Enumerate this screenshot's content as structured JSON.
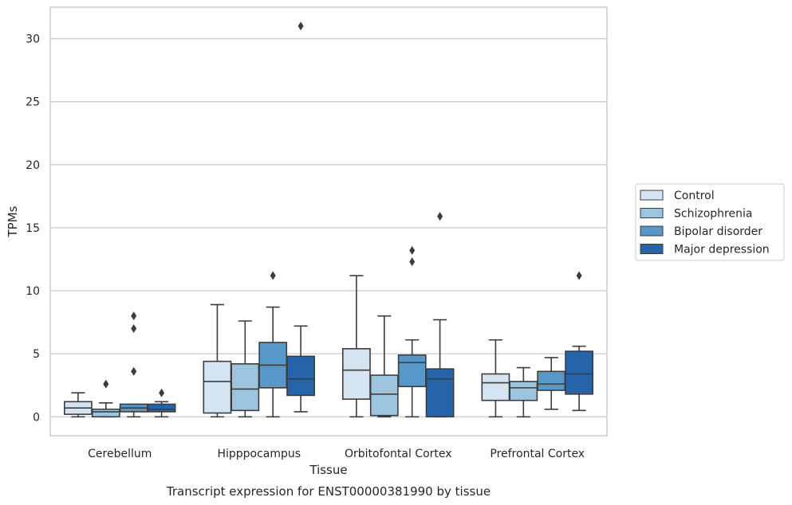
{
  "chart_data": {
    "type": "box",
    "caption": "Transcript expression for ENST00000381990 by tissue",
    "xlabel": "Tissue",
    "ylabel": "TPMs",
    "ylim": [
      -1.5,
      32.5
    ],
    "yticks": [
      0,
      5,
      10,
      15,
      20,
      25,
      30
    ],
    "grid": true,
    "legend_position": "right",
    "categories": [
      "Cerebellum",
      "Hipppocampus",
      "Orbitofontal Cortex",
      "Prefrontal Cortex"
    ],
    "series": [
      {
        "name": "Control",
        "color": "#d4e4f2",
        "boxes": [
          {
            "whislo": 0.0,
            "q1": 0.2,
            "med": 0.7,
            "q3": 1.2,
            "whishi": 1.9,
            "fliers": []
          },
          {
            "whislo": 0.0,
            "q1": 0.3,
            "med": 2.8,
            "q3": 4.4,
            "whishi": 8.9,
            "fliers": []
          },
          {
            "whislo": 0.0,
            "q1": 1.4,
            "med": 3.7,
            "q3": 5.4,
            "whishi": 11.2,
            "fliers": []
          },
          {
            "whislo": 0.0,
            "q1": 1.3,
            "med": 2.7,
            "q3": 3.4,
            "whishi": 6.1,
            "fliers": []
          }
        ]
      },
      {
        "name": "Schizophrenia",
        "color": "#9cc4df",
        "boxes": [
          {
            "whislo": 0.0,
            "q1": 0.0,
            "med": 0.4,
            "q3": 0.6,
            "whishi": 1.1,
            "fliers": [
              2.6
            ]
          },
          {
            "whislo": 0.0,
            "q1": 0.5,
            "med": 2.2,
            "q3": 4.2,
            "whishi": 7.6,
            "fliers": []
          },
          {
            "whislo": 0.0,
            "q1": 0.1,
            "med": 1.8,
            "q3": 3.3,
            "whishi": 8.0,
            "fliers": []
          },
          {
            "whislo": 0.0,
            "q1": 1.3,
            "med": 2.3,
            "q3": 2.8,
            "whishi": 3.9,
            "fliers": []
          }
        ]
      },
      {
        "name": "Bipolar disorder",
        "color": "#5898c8",
        "boxes": [
          {
            "whislo": 0.0,
            "q1": 0.4,
            "med": 0.7,
            "q3": 1.0,
            "whishi": 1.0,
            "fliers": [
              3.6,
              7.0,
              8.0
            ]
          },
          {
            "whislo": 0.0,
            "q1": 2.3,
            "med": 4.1,
            "q3": 5.9,
            "whishi": 8.7,
            "fliers": [
              11.2
            ]
          },
          {
            "whislo": 0.0,
            "q1": 2.4,
            "med": 4.3,
            "q3": 4.9,
            "whishi": 6.1,
            "fliers": [
              12.3,
              13.2
            ]
          },
          {
            "whislo": 0.6,
            "q1": 2.1,
            "med": 2.6,
            "q3": 3.6,
            "whishi": 4.7,
            "fliers": []
          }
        ]
      },
      {
        "name": "Major depression",
        "color": "#2564a8",
        "boxes": [
          {
            "whislo": 0.0,
            "q1": 0.4,
            "med": 0.6,
            "q3": 1.0,
            "whishi": 1.2,
            "fliers": [
              1.9
            ]
          },
          {
            "whislo": 0.4,
            "q1": 1.7,
            "med": 3.0,
            "q3": 4.8,
            "whishi": 7.2,
            "fliers": [
              31.0
            ]
          },
          {
            "whislo": 0.0,
            "q1": 0.0,
            "med": 3.0,
            "q3": 3.8,
            "whishi": 7.7,
            "fliers": [
              15.9
            ]
          },
          {
            "whislo": 0.5,
            "q1": 1.8,
            "med": 3.4,
            "q3": 5.2,
            "whishi": 5.6,
            "fliers": [
              11.2
            ]
          }
        ]
      }
    ]
  }
}
